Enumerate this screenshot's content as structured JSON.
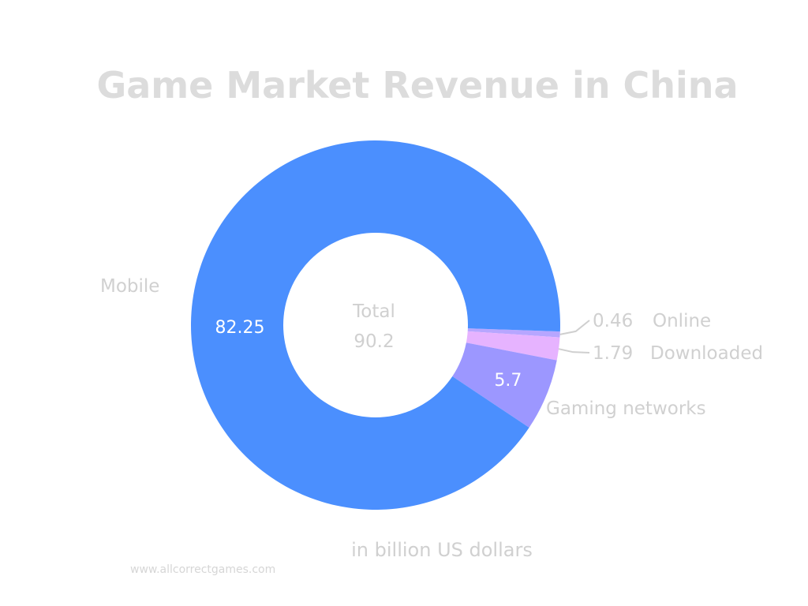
{
  "chart_data": {
    "type": "pie",
    "variant": "donut",
    "title": "Game Market Revenue in China",
    "unit_label": "in billion US dollars",
    "total_label": "Total",
    "total_value": "90.2",
    "source": "www.allcorrectgames.com",
    "legend": "none",
    "slices": [
      {
        "name": "Online",
        "value": 0.46,
        "label": "0.46",
        "color": "#b7a6ff"
      },
      {
        "name": "Downloaded",
        "value": 1.79,
        "label": "1.79",
        "color": "#e6b3ff"
      },
      {
        "name": "Gaming networks",
        "value": 5.7,
        "label": "5.7",
        "color": "#9c97ff"
      },
      {
        "name": "Mobile",
        "value": 82.25,
        "label": "82.25",
        "color": "#4b8ffe"
      }
    ]
  }
}
